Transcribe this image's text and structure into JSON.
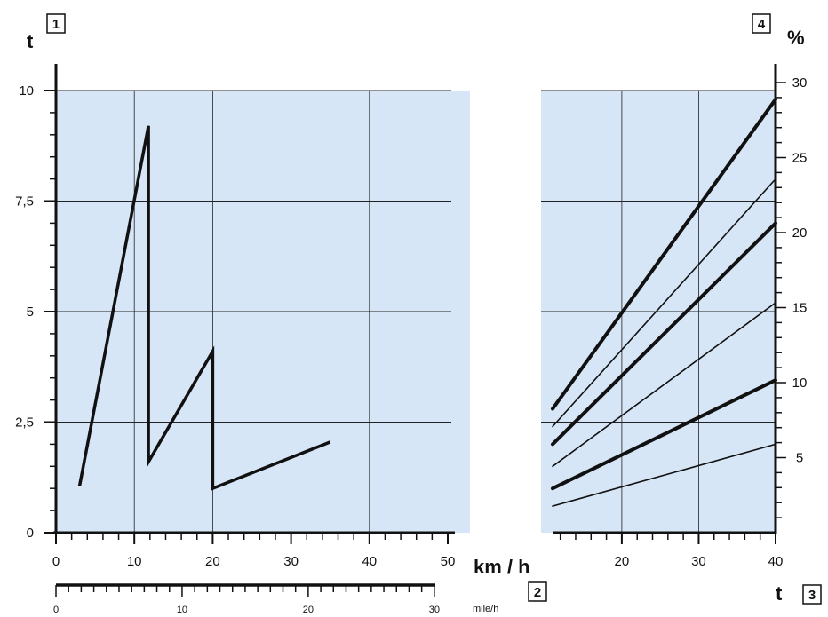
{
  "labels": {
    "y_left_symbol": "t",
    "y_right_symbol": "%",
    "x_left_unit": "km / h",
    "x_secondary_unit": "mile/h",
    "x_right_symbol": "t",
    "box1": "1",
    "box2": "2",
    "box3": "3",
    "box4": "4"
  },
  "colors": {
    "panel_fill": "#d6e6f7",
    "line": "#111111",
    "grid": "#222222"
  },
  "chart_data": [
    {
      "type": "line",
      "panel": "left",
      "xlabel": "km / h",
      "ylabel": "t",
      "xlim": [
        0,
        50
      ],
      "ylim": [
        0,
        10
      ],
      "x_ticks": [
        0,
        10,
        20,
        30,
        40,
        50
      ],
      "y_ticks": [
        0,
        2.5,
        5,
        7.5,
        10
      ],
      "y_tick_labels": [
        "0",
        "2,5",
        "5",
        "7,5",
        "10"
      ],
      "secondary_x_axis": {
        "label": "mile/h",
        "ticks": [
          0,
          10,
          20,
          30
        ]
      },
      "grid": true,
      "series": [
        {
          "x": [
            3,
            11.8,
            11.8,
            20,
            20,
            35
          ],
          "y": [
            1.05,
            9.2,
            1.6,
            4.1,
            1.0,
            2.05
          ]
        }
      ]
    },
    {
      "type": "line",
      "panel": "right",
      "xlabel": "t",
      "ylabel": "%",
      "xlim": [
        11,
        40
      ],
      "x_ticks": [
        20,
        30,
        40
      ],
      "y_ticks_right": [
        5,
        10,
        15,
        20,
        25,
        30
      ],
      "grid": true,
      "series": [
        {
          "x": [
            11,
            40
          ],
          "y": [
            2.8,
            9.8
          ],
          "weight": "bold"
        },
        {
          "x": [
            11,
            40
          ],
          "y": [
            2.4,
            8.0
          ],
          "weight": "thin"
        },
        {
          "x": [
            11,
            40
          ],
          "y": [
            2.0,
            7.0
          ],
          "weight": "bold"
        },
        {
          "x": [
            11,
            40
          ],
          "y": [
            1.5,
            5.2
          ],
          "weight": "thin"
        },
        {
          "x": [
            11,
            40
          ],
          "y": [
            1.0,
            3.45
          ],
          "weight": "bold"
        },
        {
          "x": [
            11,
            40
          ],
          "y": [
            0.6,
            2.0
          ],
          "weight": "thin"
        }
      ]
    }
  ]
}
